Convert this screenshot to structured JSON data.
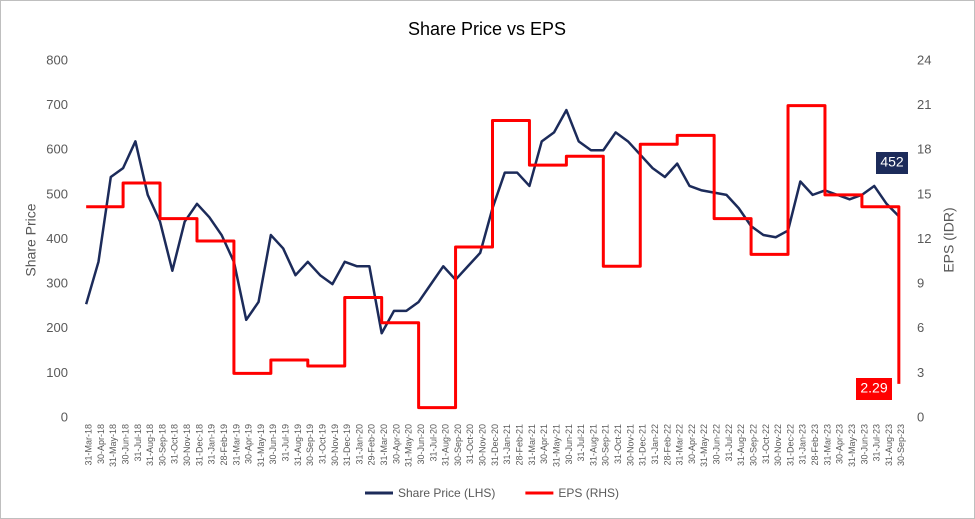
{
  "chart_data": {
    "type": "line",
    "title": "Share Price vs EPS",
    "y_label": "Share Price",
    "y2_label": "EPS (IDR)",
    "categories": [
      "31-Mar-18",
      "30-Apr-18",
      "31-May-18",
      "30-Jun-18",
      "31-Jul-18",
      "31-Aug-18",
      "30-Sep-18",
      "31-Oct-18",
      "30-Nov-18",
      "31-Dec-18",
      "31-Jan-19",
      "28-Feb-19",
      "31-Mar-19",
      "30-Apr-19",
      "31-May-19",
      "30-Jun-19",
      "31-Jul-19",
      "31-Aug-19",
      "30-Sep-19",
      "31-Oct-19",
      "30-Nov-19",
      "31-Dec-19",
      "31-Jan-20",
      "29-Feb-20",
      "31-Mar-20",
      "30-Apr-20",
      "31-May-20",
      "30-Jun-20",
      "31-Jul-20",
      "31-Aug-20",
      "30-Sep-20",
      "31-Oct-20",
      "30-Nov-20",
      "31-Dec-20",
      "31-Jan-21",
      "28-Feb-21",
      "31-Mar-21",
      "30-Apr-21",
      "31-May-21",
      "30-Jun-21",
      "31-Jul-21",
      "31-Aug-21",
      "30-Sep-21",
      "31-Oct-21",
      "30-Nov-21",
      "31-Dec-21",
      "31-Jan-22",
      "28-Feb-22",
      "31-Mar-22",
      "30-Apr-22",
      "31-May-22",
      "30-Jun-22",
      "31-Jul-22",
      "31-Aug-22",
      "30-Sep-22",
      "31-Oct-22",
      "30-Nov-22",
      "31-Dec-22",
      "31-Jan-23",
      "28-Feb-23",
      "31-Mar-23",
      "30-Apr-23",
      "31-May-23",
      "30-Jun-23",
      "31-Jul-23",
      "31-Aug-23",
      "30-Sep-23"
    ],
    "series": [
      {
        "name": "Share Price (LHS)",
        "color": "#1c2b5a",
        "axis": "y",
        "values": [
          255,
          350,
          540,
          560,
          620,
          500,
          440,
          330,
          440,
          480,
          450,
          410,
          350,
          220,
          260,
          410,
          380,
          320,
          350,
          320,
          300,
          350,
          340,
          340,
          190,
          240,
          240,
          260,
          300,
          340,
          310,
          340,
          370,
          470,
          550,
          550,
          520,
          620,
          640,
          690,
          620,
          600,
          600,
          640,
          620,
          590,
          560,
          540,
          570,
          520,
          510,
          505,
          500,
          470,
          430,
          410,
          405,
          420,
          530,
          500,
          510,
          500,
          490,
          500,
          520,
          480,
          452
        ]
      },
      {
        "name": "EPS (RHS)",
        "color": "#ff0000",
        "axis": "y2",
        "line_shape": "step",
        "values": [
          14.2,
          14.2,
          14.2,
          15.8,
          15.8,
          15.8,
          13.4,
          13.4,
          13.4,
          11.9,
          11.9,
          11.9,
          3.0,
          3.0,
          3.0,
          3.9,
          3.9,
          3.9,
          3.5,
          3.5,
          3.5,
          8.1,
          8.1,
          8.1,
          6.4,
          6.4,
          6.4,
          0.7,
          0.7,
          0.7,
          11.5,
          11.5,
          11.5,
          20.0,
          20.0,
          20.0,
          17.0,
          17.0,
          17.0,
          17.6,
          17.6,
          17.6,
          10.2,
          10.2,
          10.2,
          18.4,
          18.4,
          18.4,
          19.0,
          19.0,
          19.0,
          13.4,
          13.4,
          13.4,
          11.0,
          11.0,
          11.0,
          21.0,
          21.0,
          21.0,
          15.0,
          15.0,
          15.0,
          14.2,
          14.2,
          14.2,
          2.29
        ]
      }
    ],
    "ylim": [
      0,
      800
    ],
    "yticks": [
      0,
      100,
      200,
      300,
      400,
      500,
      600,
      700,
      800
    ],
    "y2lim": [
      0,
      24
    ],
    "y2ticks": [
      0,
      3,
      6,
      9,
      12,
      15,
      18,
      21,
      24
    ],
    "grid": false,
    "legend": "bottom"
  }
}
